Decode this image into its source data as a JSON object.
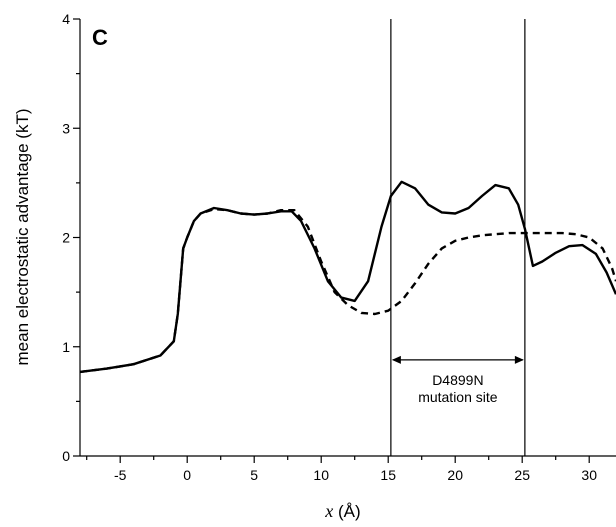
{
  "chart_data": {
    "type": "line",
    "panel_label": "C",
    "xlabel_var": "x",
    "xlabel_unit": " (Å)",
    "ylabel": "mean electrostatic advantage (kT)",
    "xlim": [
      -8,
      32
    ],
    "ylim": [
      0,
      4
    ],
    "xticks": [
      -5,
      0,
      5,
      10,
      15,
      20,
      25,
      30
    ],
    "yticks": [
      0,
      1,
      2,
      3,
      4
    ],
    "grid": false,
    "vertical_lines": [
      15.2,
      25.2
    ],
    "annotation": {
      "line1": "D4899N",
      "line2": "mutation site",
      "x_start": 15.2,
      "x_end": 25.2,
      "y": 0.88
    },
    "series": [
      {
        "style": "solid",
        "points": [
          [
            -8,
            0.77
          ],
          [
            -6,
            0.8
          ],
          [
            -4,
            0.84
          ],
          [
            -2,
            0.92
          ],
          [
            -1,
            1.05
          ],
          [
            -0.7,
            1.3
          ],
          [
            -0.5,
            1.6
          ],
          [
            -0.3,
            1.9
          ],
          [
            0,
            2.0
          ],
          [
            0.5,
            2.15
          ],
          [
            1,
            2.22
          ],
          [
            2,
            2.27
          ],
          [
            3,
            2.25
          ],
          [
            4,
            2.22
          ],
          [
            5,
            2.21
          ],
          [
            6,
            2.22
          ],
          [
            7,
            2.24
          ],
          [
            7.8,
            2.24
          ],
          [
            8.5,
            2.15
          ],
          [
            9.5,
            1.9
          ],
          [
            10.5,
            1.6
          ],
          [
            11.5,
            1.45
          ],
          [
            12.5,
            1.42
          ],
          [
            13.5,
            1.6
          ],
          [
            14.5,
            2.1
          ],
          [
            15.2,
            2.38
          ],
          [
            16,
            2.51
          ],
          [
            17,
            2.45
          ],
          [
            18,
            2.3
          ],
          [
            19,
            2.23
          ],
          [
            20,
            2.22
          ],
          [
            21,
            2.27
          ],
          [
            22,
            2.38
          ],
          [
            23,
            2.48
          ],
          [
            24,
            2.45
          ],
          [
            24.7,
            2.3
          ],
          [
            25.2,
            2.08
          ],
          [
            25.8,
            1.74
          ],
          [
            26.5,
            1.78
          ],
          [
            27.5,
            1.86
          ],
          [
            28.5,
            1.92
          ],
          [
            29.5,
            1.93
          ],
          [
            30.5,
            1.85
          ],
          [
            31.3,
            1.68
          ],
          [
            32,
            1.48
          ]
        ]
      },
      {
        "style": "dashed",
        "points": [
          [
            -8,
            0.77
          ],
          [
            -6,
            0.8
          ],
          [
            -4,
            0.84
          ],
          [
            -2,
            0.92
          ],
          [
            -1,
            1.05
          ],
          [
            -0.7,
            1.3
          ],
          [
            -0.5,
            1.6
          ],
          [
            -0.3,
            1.9
          ],
          [
            0,
            2.0
          ],
          [
            0.5,
            2.15
          ],
          [
            1,
            2.22
          ],
          [
            2,
            2.26
          ],
          [
            3,
            2.25
          ],
          [
            4,
            2.22
          ],
          [
            5,
            2.21
          ],
          [
            6,
            2.22
          ],
          [
            7,
            2.25
          ],
          [
            8,
            2.25
          ],
          [
            9,
            2.1
          ],
          [
            10,
            1.78
          ],
          [
            11,
            1.5
          ],
          [
            12,
            1.38
          ],
          [
            13,
            1.31
          ],
          [
            14,
            1.3
          ],
          [
            15,
            1.33
          ],
          [
            16,
            1.42
          ],
          [
            17,
            1.58
          ],
          [
            18,
            1.76
          ],
          [
            19,
            1.9
          ],
          [
            20,
            1.97
          ],
          [
            21,
            2.0
          ],
          [
            22,
            2.02
          ],
          [
            23,
            2.03
          ],
          [
            24,
            2.04
          ],
          [
            25,
            2.04
          ],
          [
            26,
            2.04
          ],
          [
            27,
            2.04
          ],
          [
            28,
            2.04
          ],
          [
            29,
            2.03
          ],
          [
            30,
            2.0
          ],
          [
            31,
            1.9
          ],
          [
            31.7,
            1.72
          ],
          [
            32,
            1.6
          ]
        ]
      }
    ]
  }
}
